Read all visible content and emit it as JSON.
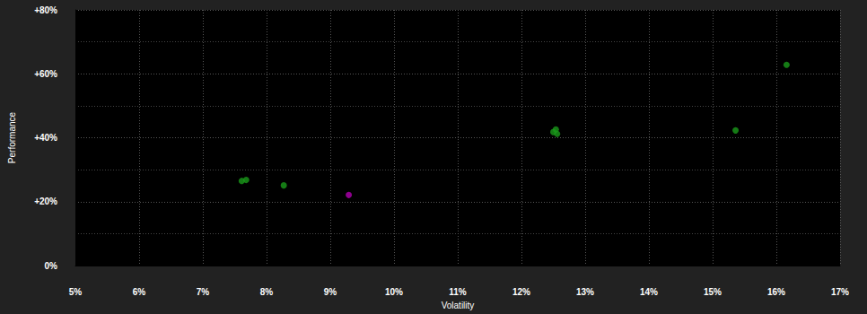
{
  "chart_data": {
    "type": "scatter",
    "x_label": "Volatility",
    "y_label": "Performance",
    "x": [
      7.61,
      7.68,
      8.27,
      9.29,
      12.5,
      12.54,
      12.56,
      15.36,
      16.16
    ],
    "values": [
      26.5,
      26.8,
      25.1,
      22.1,
      41.8,
      42.6,
      41.2,
      42.3,
      62.8
    ],
    "colors": [
      "#1a9a1a",
      "#1a9a1a",
      "#1a9a1a",
      "#b000b0",
      "#1a9a1a",
      "#1a9a1a",
      "#1a9a1a",
      "#1a9a1a",
      "#1a9a1a"
    ],
    "marker": "circle",
    "xlim": [
      5,
      17
    ],
    "xticks": [
      {
        "value": 5,
        "label": "5%"
      },
      {
        "value": 6,
        "label": "6%"
      },
      {
        "value": 7,
        "label": "7%"
      },
      {
        "value": 8,
        "label": "8%"
      },
      {
        "value": 9,
        "label": "9%"
      },
      {
        "value": 10,
        "label": "10%"
      },
      {
        "value": 11,
        "label": "11%"
      },
      {
        "value": 12,
        "label": "12%"
      },
      {
        "value": 13,
        "label": "13%"
      },
      {
        "value": 14,
        "label": "14%"
      },
      {
        "value": 15,
        "label": "15%"
      },
      {
        "value": 16,
        "label": "16%"
      },
      {
        "value": 17,
        "label": "17%"
      }
    ],
    "ylim": [
      0,
      80
    ],
    "yticks": [
      {
        "value": 0,
        "label": "0%"
      },
      {
        "value": 20,
        "label": "+20%"
      },
      {
        "value": 40,
        "label": "+40%"
      },
      {
        "value": 60,
        "label": "+60%"
      },
      {
        "value": 80,
        "label": "+80%"
      }
    ],
    "grid": true
  }
}
